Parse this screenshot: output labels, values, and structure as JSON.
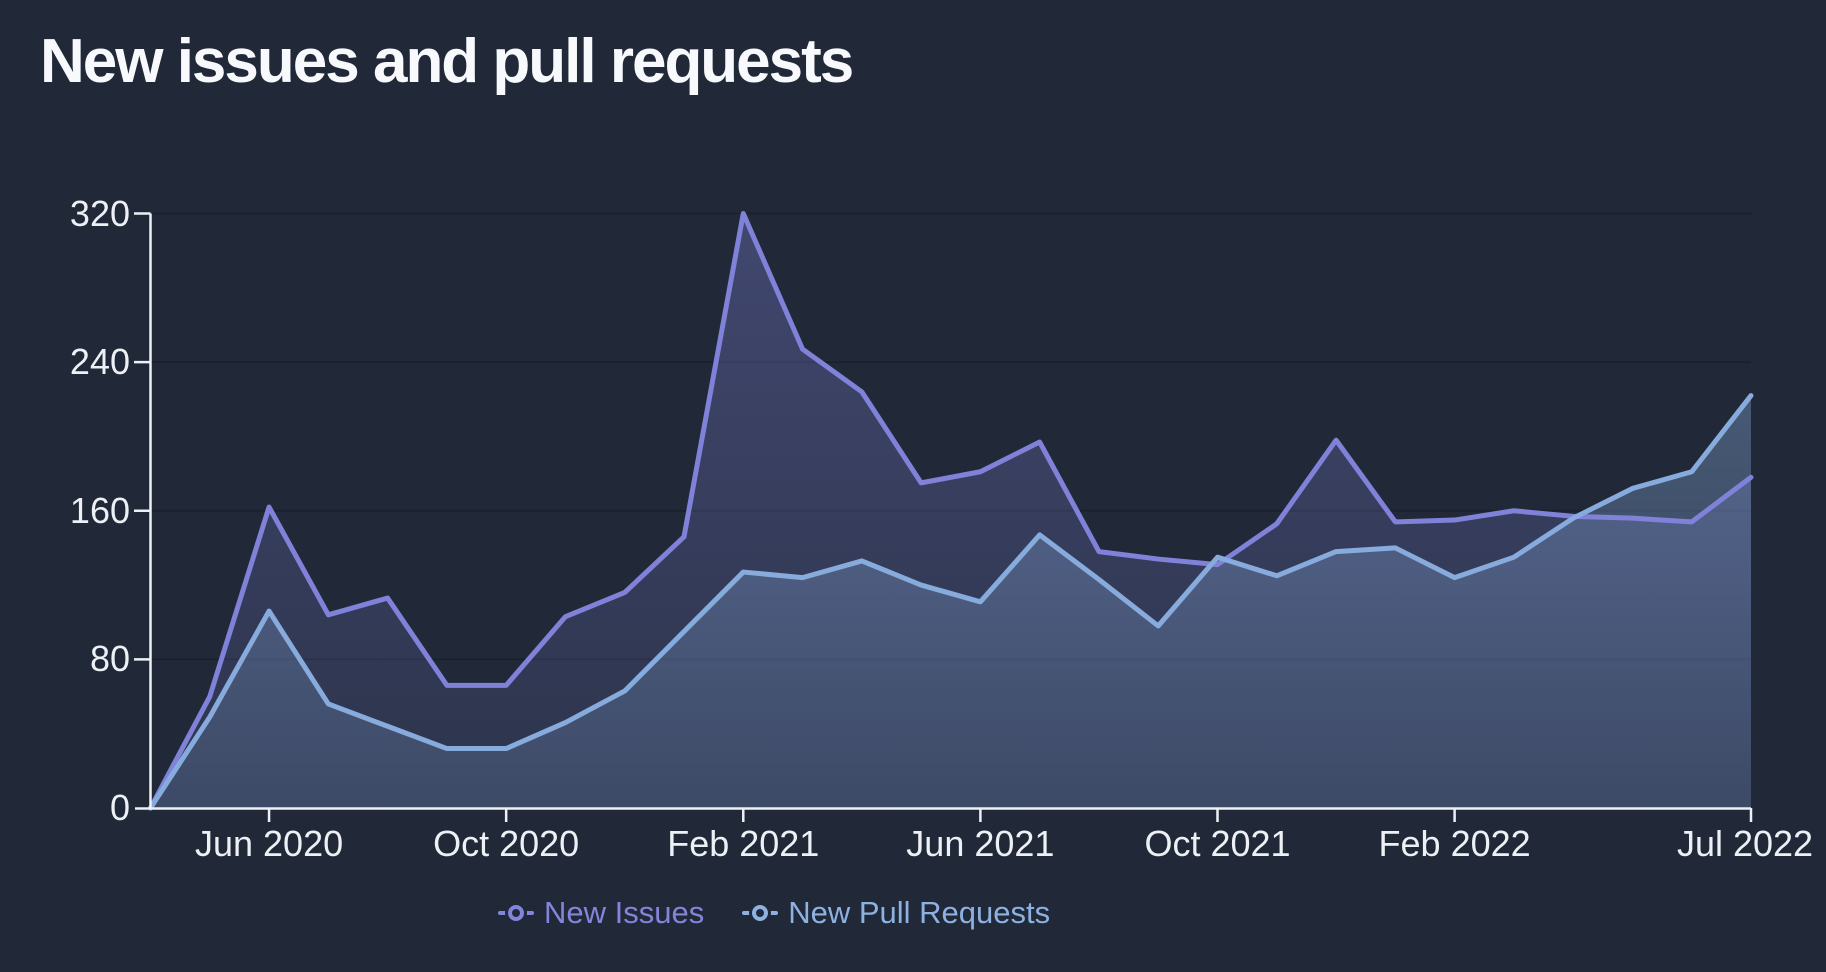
{
  "title": "New issues and pull requests",
  "colors": {
    "background": "#212938",
    "grid": "#1a212e",
    "axis": "#edf0f4",
    "tick_text": "#edf1f5",
    "title_text": "#f7f9fc",
    "issues_purple": "#7f82d8",
    "pulls_blue": "#87abdc"
  },
  "legend": {
    "items": [
      {
        "label": "New Issues",
        "color": "#8285da"
      },
      {
        "label": "New Pull Requests",
        "color": "#8db1e0"
      }
    ]
  },
  "chart_data": {
    "type": "area",
    "title": "New issues and pull requests",
    "xlabel": "",
    "ylabel": "",
    "ylim": [
      0,
      320
    ],
    "yticks": [
      0,
      80,
      160,
      240,
      320
    ],
    "grid": "horizontal",
    "legend_position": "bottom",
    "x": [
      "Apr 2020",
      "May 2020",
      "Jun 2020",
      "Jul 2020",
      "Aug 2020",
      "Sep 2020",
      "Oct 2020",
      "Nov 2020",
      "Dec 2020",
      "Jan 2021",
      "Feb 2021",
      "Mar 2021",
      "Apr 2021",
      "May 2021",
      "Jun 2021",
      "Jul 2021",
      "Aug 2021",
      "Sep 2021",
      "Oct 2021",
      "Nov 2021",
      "Dec 2021",
      "Jan 2022",
      "Feb 2022",
      "Mar 2022",
      "Apr 2022",
      "May 2022",
      "Jun 2022",
      "Jul 2022"
    ],
    "xticks": [
      {
        "label": "Jun 2020",
        "index": 2
      },
      {
        "label": "Oct 2020",
        "index": 6
      },
      {
        "label": "Feb 2021",
        "index": 10
      },
      {
        "label": "Jun 2021",
        "index": 14
      },
      {
        "label": "Oct 2021",
        "index": 18
      },
      {
        "label": "Feb 2022",
        "index": 22
      },
      {
        "label": "Jul 2022",
        "index": 27
      }
    ],
    "series": [
      {
        "name": "New Issues",
        "color": "#7f82d8",
        "values": [
          0,
          60,
          162,
          104,
          113,
          66,
          66,
          103,
          116,
          146,
          320,
          247,
          224,
          175,
          181,
          197,
          138,
          134,
          131,
          153,
          198,
          154,
          155,
          160,
          157,
          156,
          154,
          178
        ]
      },
      {
        "name": "New Pull Requests",
        "color": "#87abdc",
        "values": [
          0,
          49,
          106,
          56,
          44,
          32,
          32,
          46,
          63,
          95,
          127,
          124,
          133,
          120,
          111,
          147,
          123,
          98,
          135,
          125,
          138,
          140,
          124,
          135,
          156,
          172,
          181,
          222
        ]
      }
    ]
  }
}
